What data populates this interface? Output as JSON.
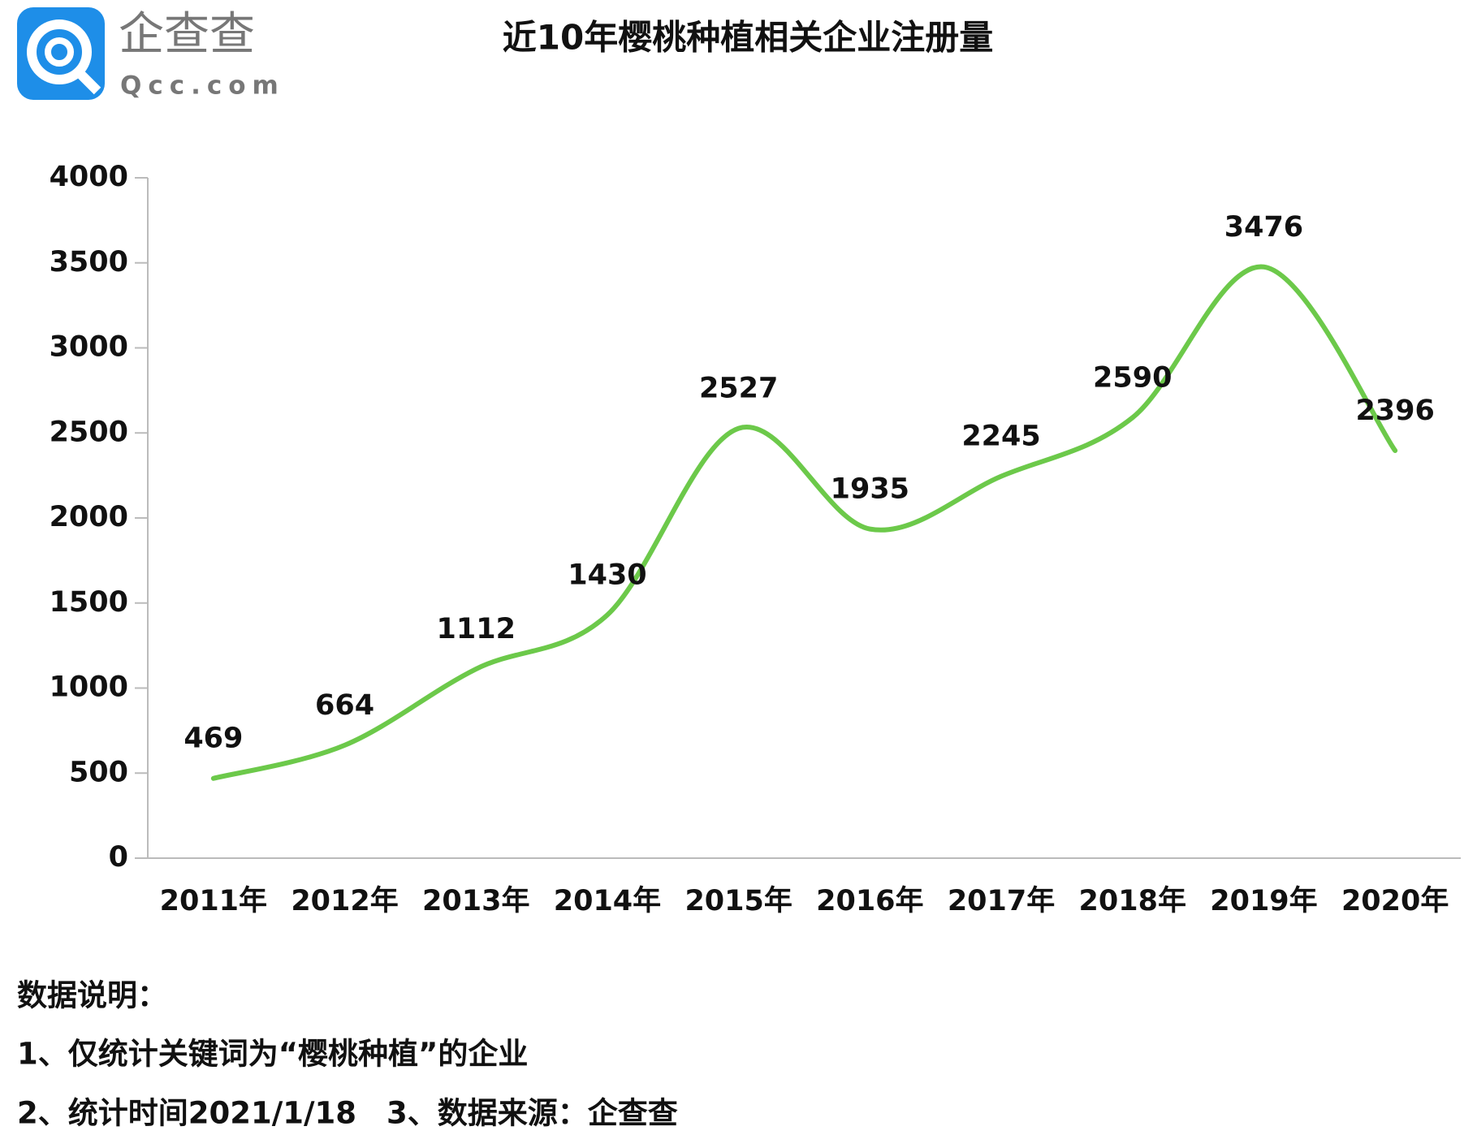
{
  "logo": {
    "name": "企查查",
    "domain": "Qcc.com"
  },
  "chart_data": {
    "type": "line",
    "title": "近10年樱桃种植相关企业注册量",
    "categories": [
      "2011年",
      "2012年",
      "2013年",
      "2014年",
      "2015年",
      "2016年",
      "2017年",
      "2018年",
      "2019年",
      "2020年"
    ],
    "values": [
      469,
      664,
      1112,
      1430,
      2527,
      1935,
      2245,
      2590,
      3476,
      2396
    ],
    "color": "#6cc94a",
    "ylim": [
      0,
      4000
    ],
    "yticks": [
      0,
      500,
      1000,
      1500,
      2000,
      2500,
      3000,
      3500,
      4000
    ],
    "grid": false,
    "smooth": true
  },
  "notes": [
    "数据说明：",
    "1、仅统计关键词为“樱桃种植”的企业",
    "2、统计时间2021/1/18　3、数据来源：企查查"
  ]
}
